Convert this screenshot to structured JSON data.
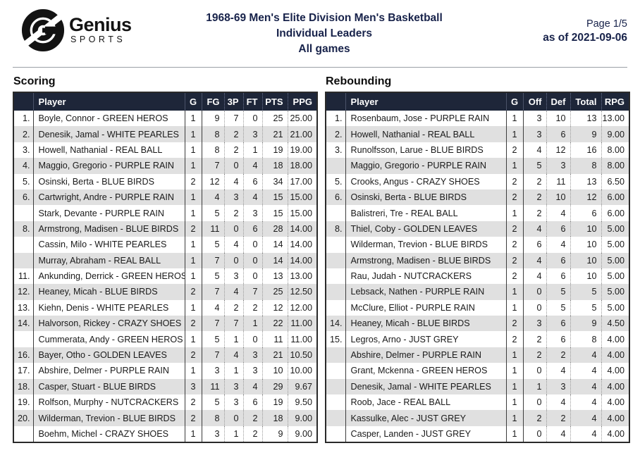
{
  "logo": {
    "name": "Genius",
    "sub": "SPORTS"
  },
  "header": {
    "title_line1": "1968-69 Men's Elite Division Men's Basketball",
    "title_line2": "Individual Leaders",
    "title_line3": "All games",
    "page_label": "Page 1/5",
    "as_of_label": "as of 2021-09-06"
  },
  "colors": {
    "title_navy": "#17224a",
    "table_header_bg": "#1e2639",
    "row_alt_gray": "#e0e0e0"
  },
  "icons": {
    "logo_mark": "genius-logo-mark"
  },
  "tables": [
    {
      "title": "Scoring",
      "columns": {
        "rank": "",
        "player": "Player",
        "games": "G",
        "stats": [
          "FG",
          "3P",
          "FT",
          "PTS",
          "PPG"
        ]
      },
      "rows": [
        {
          "rank": "1.",
          "player": "Boyle, Connor - GREEN HEROS",
          "games": "1",
          "stats": [
            "9",
            "7",
            "0",
            "25",
            "25.00"
          ]
        },
        {
          "rank": "2.",
          "player": "Denesik, Jamal - WHITE PEARLES",
          "games": "1",
          "stats": [
            "8",
            "2",
            "3",
            "21",
            "21.00"
          ]
        },
        {
          "rank": "3.",
          "player": "Howell, Nathanial - REAL BALL",
          "games": "1",
          "stats": [
            "8",
            "2",
            "1",
            "19",
            "19.00"
          ]
        },
        {
          "rank": "4.",
          "player": "Maggio, Gregorio - PURPLE RAIN",
          "games": "1",
          "stats": [
            "7",
            "0",
            "4",
            "18",
            "18.00"
          ]
        },
        {
          "rank": "5.",
          "player": "Osinski, Berta - BLUE BIRDS",
          "games": "2",
          "stats": [
            "12",
            "4",
            "6",
            "34",
            "17.00"
          ]
        },
        {
          "rank": "6.",
          "player": "Cartwright, Andre - PURPLE RAIN",
          "games": "1",
          "stats": [
            "4",
            "3",
            "4",
            "15",
            "15.00"
          ]
        },
        {
          "rank": "",
          "player": "Stark, Devante - PURPLE RAIN",
          "games": "1",
          "stats": [
            "5",
            "2",
            "3",
            "15",
            "15.00"
          ]
        },
        {
          "rank": "8.",
          "player": "Armstrong, Madisen - BLUE BIRDS",
          "games": "2",
          "stats": [
            "11",
            "0",
            "6",
            "28",
            "14.00"
          ]
        },
        {
          "rank": "",
          "player": "Cassin, Milo - WHITE PEARLES",
          "games": "1",
          "stats": [
            "5",
            "4",
            "0",
            "14",
            "14.00"
          ]
        },
        {
          "rank": "",
          "player": "Murray, Abraham - REAL BALL",
          "games": "1",
          "stats": [
            "7",
            "0",
            "0",
            "14",
            "14.00"
          ]
        },
        {
          "rank": "11.",
          "player": "Ankunding, Derrick - GREEN HEROS",
          "games": "1",
          "stats": [
            "5",
            "3",
            "0",
            "13",
            "13.00"
          ]
        },
        {
          "rank": "12.",
          "player": "Heaney, Micah - BLUE BIRDS",
          "games": "2",
          "stats": [
            "7",
            "4",
            "7",
            "25",
            "12.50"
          ]
        },
        {
          "rank": "13.",
          "player": "Kiehn, Denis - WHITE PEARLES",
          "games": "1",
          "stats": [
            "4",
            "2",
            "2",
            "12",
            "12.00"
          ]
        },
        {
          "rank": "14.",
          "player": "Halvorson, Rickey - CRAZY SHOES",
          "games": "2",
          "stats": [
            "7",
            "7",
            "1",
            "22",
            "11.00"
          ]
        },
        {
          "rank": "",
          "player": "Cummerata, Andy - GREEN HEROS",
          "games": "1",
          "stats": [
            "5",
            "1",
            "0",
            "11",
            "11.00"
          ]
        },
        {
          "rank": "16.",
          "player": "Bayer, Otho - GOLDEN LEAVES",
          "games": "2",
          "stats": [
            "7",
            "4",
            "3",
            "21",
            "10.50"
          ]
        },
        {
          "rank": "17.",
          "player": "Abshire, Delmer - PURPLE RAIN",
          "games": "1",
          "stats": [
            "3",
            "1",
            "3",
            "10",
            "10.00"
          ]
        },
        {
          "rank": "18.",
          "player": "Casper, Stuart - BLUE BIRDS",
          "games": "3",
          "stats": [
            "11",
            "3",
            "4",
            "29",
            "9.67"
          ]
        },
        {
          "rank": "19.",
          "player": "Rolfson, Murphy - NUTCRACKERS",
          "games": "2",
          "stats": [
            "5",
            "3",
            "6",
            "19",
            "9.50"
          ]
        },
        {
          "rank": "20.",
          "player": "Wilderman, Trevion - BLUE BIRDS",
          "games": "2",
          "stats": [
            "8",
            "0",
            "2",
            "18",
            "9.00"
          ]
        },
        {
          "rank": "",
          "player": "Boehm, Michel - CRAZY SHOES",
          "games": "1",
          "stats": [
            "3",
            "1",
            "2",
            "9",
            "9.00"
          ]
        }
      ]
    },
    {
      "title": "Rebounding",
      "columns": {
        "rank": "",
        "player": "Player",
        "games": "G",
        "stats": [
          "Off",
          "Def",
          "Total",
          "RPG"
        ]
      },
      "rows": [
        {
          "rank": "1.",
          "player": "Rosenbaum, Jose - PURPLE RAIN",
          "games": "1",
          "stats": [
            "3",
            "10",
            "13",
            "13.00"
          ]
        },
        {
          "rank": "2.",
          "player": "Howell, Nathanial - REAL BALL",
          "games": "1",
          "stats": [
            "3",
            "6",
            "9",
            "9.00"
          ]
        },
        {
          "rank": "3.",
          "player": "Runolfsson, Larue - BLUE BIRDS",
          "games": "2",
          "stats": [
            "4",
            "12",
            "16",
            "8.00"
          ]
        },
        {
          "rank": "",
          "player": "Maggio, Gregorio - PURPLE RAIN",
          "games": "1",
          "stats": [
            "5",
            "3",
            "8",
            "8.00"
          ]
        },
        {
          "rank": "5.",
          "player": "Crooks, Angus - CRAZY SHOES",
          "games": "2",
          "stats": [
            "2",
            "11",
            "13",
            "6.50"
          ]
        },
        {
          "rank": "6.",
          "player": "Osinski, Berta - BLUE BIRDS",
          "games": "2",
          "stats": [
            "2",
            "10",
            "12",
            "6.00"
          ]
        },
        {
          "rank": "",
          "player": "Balistreri, Tre - REAL BALL",
          "games": "1",
          "stats": [
            "2",
            "4",
            "6",
            "6.00"
          ]
        },
        {
          "rank": "8.",
          "player": "Thiel, Coby - GOLDEN LEAVES",
          "games": "2",
          "stats": [
            "4",
            "6",
            "10",
            "5.00"
          ]
        },
        {
          "rank": "",
          "player": "Wilderman, Trevion - BLUE BIRDS",
          "games": "2",
          "stats": [
            "6",
            "4",
            "10",
            "5.00"
          ]
        },
        {
          "rank": "",
          "player": "Armstrong, Madisen - BLUE BIRDS",
          "games": "2",
          "stats": [
            "4",
            "6",
            "10",
            "5.00"
          ]
        },
        {
          "rank": "",
          "player": "Rau, Judah - NUTCRACKERS",
          "games": "2",
          "stats": [
            "4",
            "6",
            "10",
            "5.00"
          ]
        },
        {
          "rank": "",
          "player": "Lebsack, Nathen - PURPLE RAIN",
          "games": "1",
          "stats": [
            "0",
            "5",
            "5",
            "5.00"
          ]
        },
        {
          "rank": "",
          "player": "McClure, Elliot - PURPLE RAIN",
          "games": "1",
          "stats": [
            "0",
            "5",
            "5",
            "5.00"
          ]
        },
        {
          "rank": "14.",
          "player": "Heaney, Micah - BLUE BIRDS",
          "games": "2",
          "stats": [
            "3",
            "6",
            "9",
            "4.50"
          ]
        },
        {
          "rank": "15.",
          "player": "Legros, Arno - JUST GREY",
          "games": "2",
          "stats": [
            "2",
            "6",
            "8",
            "4.00"
          ]
        },
        {
          "rank": "",
          "player": "Abshire, Delmer - PURPLE RAIN",
          "games": "1",
          "stats": [
            "2",
            "2",
            "4",
            "4.00"
          ]
        },
        {
          "rank": "",
          "player": "Grant, Mckenna - GREEN HEROS",
          "games": "1",
          "stats": [
            "0",
            "4",
            "4",
            "4.00"
          ]
        },
        {
          "rank": "",
          "player": "Denesik, Jamal - WHITE PEARLES",
          "games": "1",
          "stats": [
            "1",
            "3",
            "4",
            "4.00"
          ]
        },
        {
          "rank": "",
          "player": "Roob, Jace - REAL BALL",
          "games": "1",
          "stats": [
            "0",
            "4",
            "4",
            "4.00"
          ]
        },
        {
          "rank": "",
          "player": "Kassulke, Alec - JUST GREY",
          "games": "1",
          "stats": [
            "2",
            "2",
            "4",
            "4.00"
          ]
        },
        {
          "rank": "",
          "player": "Casper, Landen - JUST GREY",
          "games": "1",
          "stats": [
            "0",
            "4",
            "4",
            "4.00"
          ]
        }
      ]
    }
  ]
}
